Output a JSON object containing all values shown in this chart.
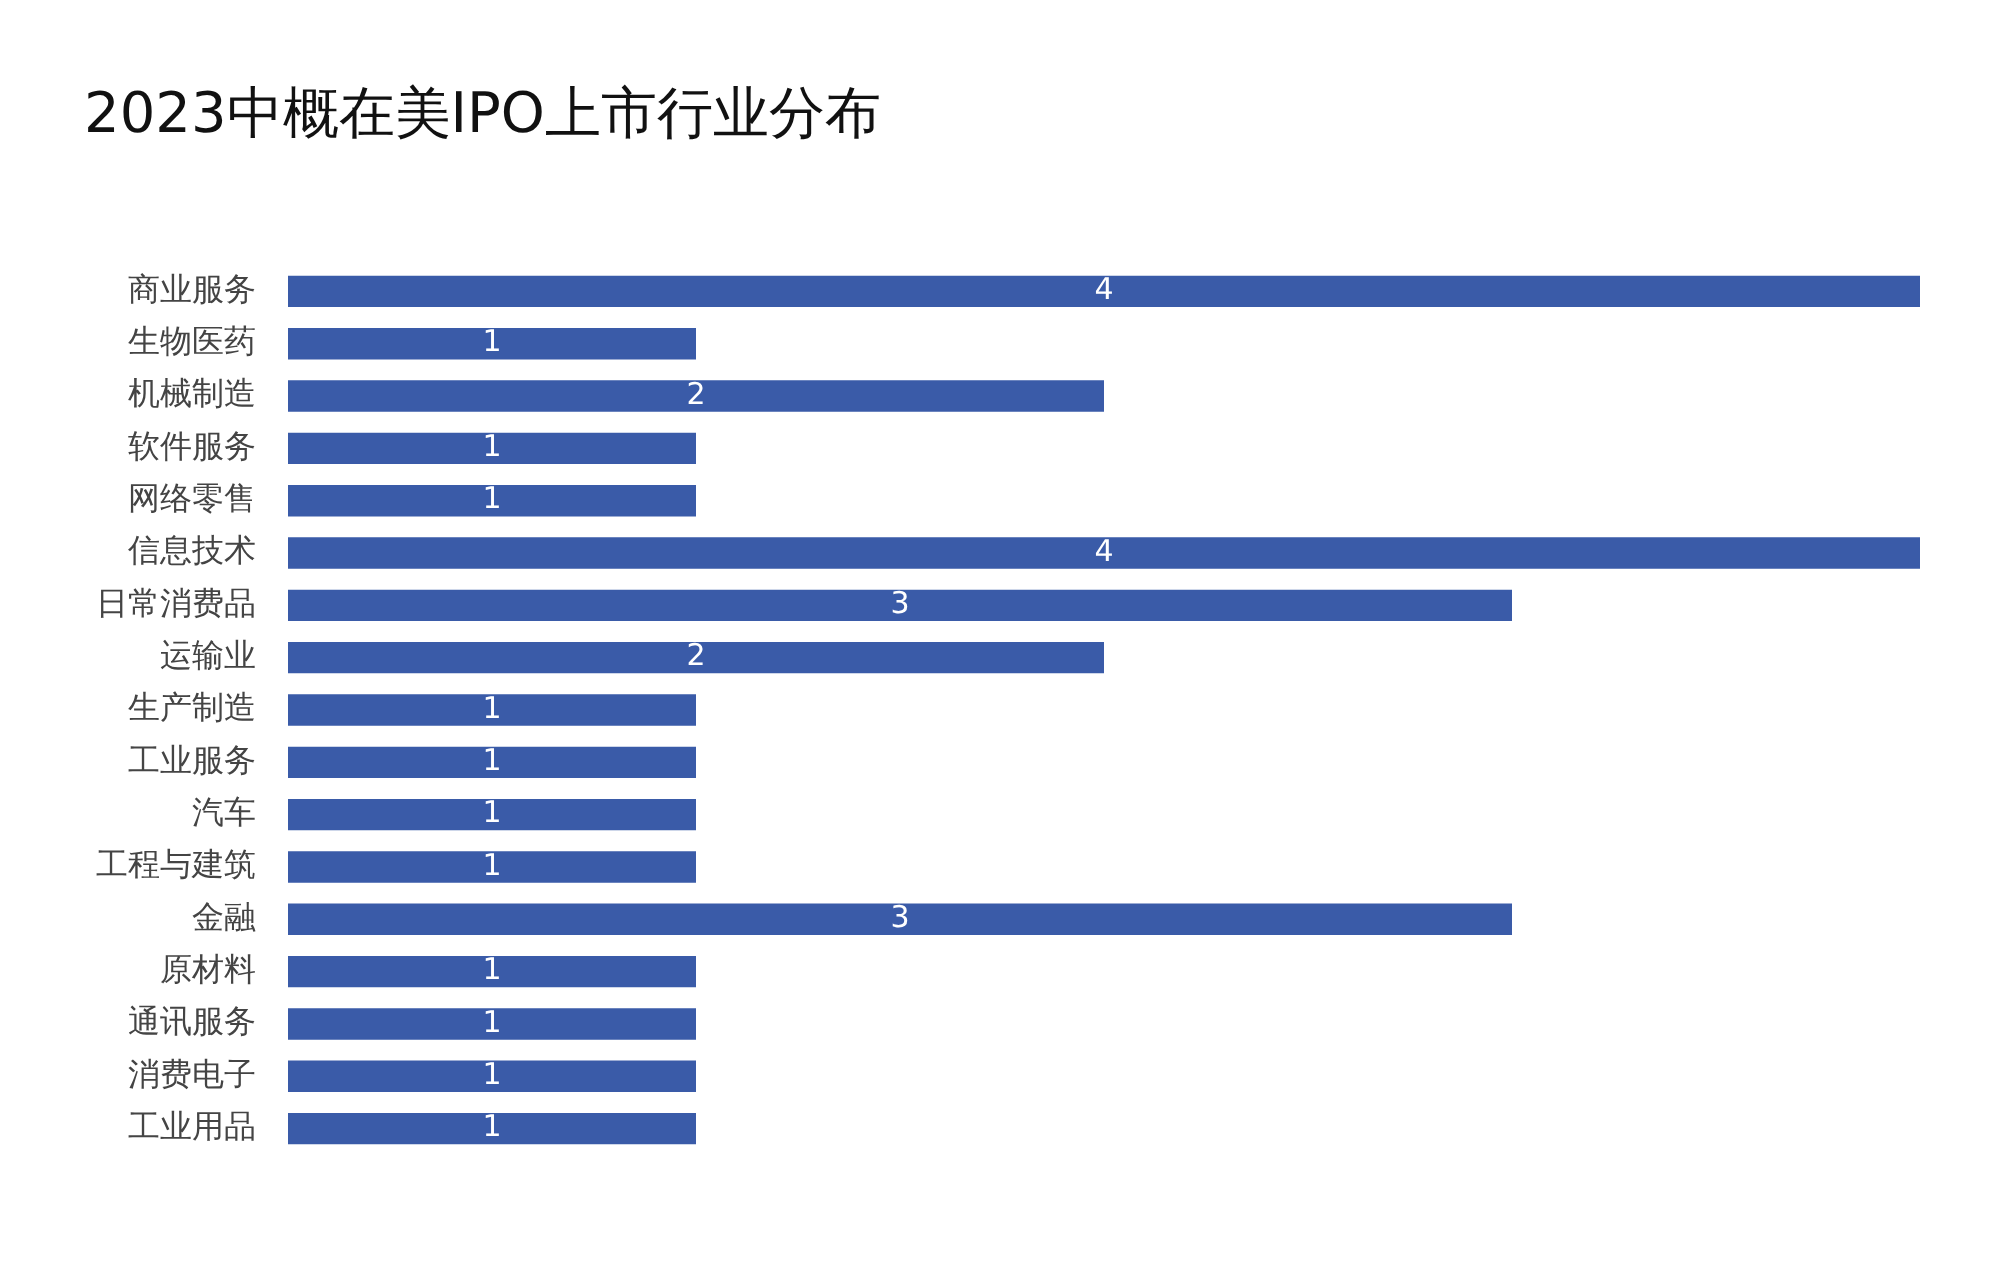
{
  "chart_data": {
    "type": "bar",
    "title": "2023中概在美IPO上市行业分布",
    "orientation": "horizontal",
    "categories": [
      "商业服务",
      "生物医药",
      "机械制造",
      "软件服务",
      "网络零售",
      "信息技术",
      "日常消费品",
      "运输业",
      "生产制造",
      "工业服务",
      "汽车",
      "工程与建筑",
      "金融",
      "原材料",
      "通讯服务",
      "消费电子",
      "工业用品"
    ],
    "values": [
      4,
      1,
      2,
      1,
      1,
      4,
      3,
      2,
      1,
      1,
      1,
      1,
      3,
      1,
      1,
      1,
      1
    ],
    "color": "#3a5ba8",
    "xlim": [
      0,
      4
    ],
    "data_labels": true
  }
}
